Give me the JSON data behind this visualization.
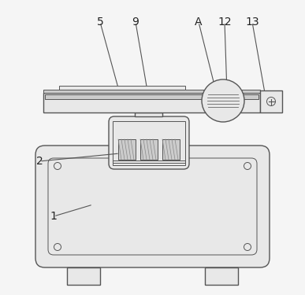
{
  "bg_color": "#f5f5f5",
  "line_color": "#555555",
  "fill_light": "#e8e8e8",
  "fill_white": "#ffffff",
  "fill_mid": "#cccccc",
  "fill_dark": "#aaaaaa"
}
